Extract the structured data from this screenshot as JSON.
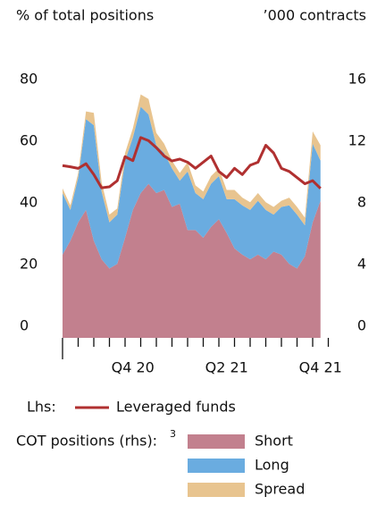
{
  "chart_data": {
    "type": "stacked-area-line",
    "left_axis_label": "% of total positions",
    "right_axis_label": "’000 contracts",
    "x": [
      0,
      0.5,
      1,
      1.5,
      2,
      2.5,
      3,
      3.5,
      4,
      4.5,
      5,
      5.5,
      6,
      6.5,
      7,
      7.5,
      8,
      8.5,
      9,
      9.5,
      10,
      10.5,
      11,
      11.5,
      12,
      12.5,
      13,
      13.5,
      14,
      14.5,
      15,
      15.5,
      16,
      16.5
    ],
    "xlim": [
      0,
      17
    ],
    "xticks": [
      0,
      1,
      2,
      3,
      4,
      5,
      6,
      7,
      8,
      9,
      10,
      11,
      12,
      13,
      14,
      15,
      16,
      17
    ],
    "xtick_labels": [
      {
        "value": 4.5,
        "label": "Q4 20"
      },
      {
        "value": 10.5,
        "label": "Q2 21"
      },
      {
        "value": 16.5,
        "label": "Q4 21"
      }
    ],
    "ylim": [
      0,
      96
    ],
    "yticks": [
      0,
      20,
      40,
      60,
      80
    ],
    "y2lim": [
      0,
      19.2
    ],
    "y2ticks": [
      0,
      4,
      8,
      12,
      16
    ],
    "line_legend_prefix": "Lhs:",
    "area_legend_prefix": "COT positions (rhs):",
    "area_legend_footnote": "3",
    "series": [
      {
        "name": "Leveraged funds",
        "color": "#b03030",
        "kind": "line",
        "values": [
          55.9,
          55.5,
          55,
          56.5,
          53,
          48.7,
          49,
          51,
          58.8,
          57.5,
          65,
          64,
          61.7,
          59,
          57.4,
          58,
          57,
          55,
          57,
          59,
          54,
          52,
          55,
          53,
          56,
          57,
          62.5,
          60,
          55,
          54,
          52,
          50,
          51,
          48.5
        ]
      },
      {
        "name": "Short",
        "color": "#c2808e",
        "kind": "area",
        "axis": "y2",
        "values": [
          5.4,
          6.3,
          7.5,
          8.3,
          6.3,
          5.1,
          4.5,
          4.8,
          6.5,
          8.3,
          9.4,
          10,
          9.4,
          9.6,
          8.5,
          8.7,
          7,
          7,
          6.5,
          7.2,
          7.7,
          6.8,
          5.8,
          5.4,
          5.1,
          5.4,
          5.1,
          5.6,
          5.4,
          4.8,
          4.5,
          5.3,
          7.5,
          8.9
        ]
      },
      {
        "name": "Long",
        "color": "#6aace0",
        "kind": "area",
        "axis": "y2",
        "values": [
          4,
          2,
          2.9,
          5.9,
          7.5,
          4.4,
          3,
          3.2,
          5,
          4.7,
          5.6,
          4.5,
          3.1,
          2.4,
          2.5,
          1.5,
          3.8,
          2.4,
          2.5,
          2.8,
          2.8,
          2.2,
          3.2,
          3.2,
          3.2,
          3.5,
          3.2,
          2.4,
          3.1,
          3.8,
          3.5,
          2,
          5.1,
          2.6
        ]
      },
      {
        "name": "Spread",
        "color": "#e8c48f",
        "kind": "area",
        "axis": "y2",
        "values": [
          0.3,
          0.3,
          0.3,
          0.5,
          0.8,
          0.6,
          0.5,
          0.4,
          0.5,
          0.6,
          0.8,
          1,
          0.8,
          0.6,
          0.5,
          0.5,
          0.6,
          0.5,
          0.5,
          0.5,
          0.5,
          0.6,
          0.6,
          0.5,
          0.5,
          0.5,
          0.5,
          0.5,
          0.4,
          0.5,
          0.5,
          0.5,
          0.8,
          1
        ]
      }
    ]
  }
}
